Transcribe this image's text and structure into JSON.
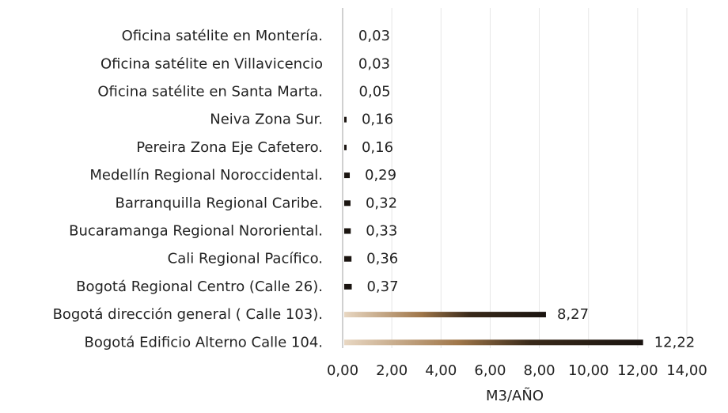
{
  "chart_data": {
    "type": "bar",
    "orientation": "horizontal",
    "categories": [
      "Oficina satélite en Montería.",
      "Oficina satélite en Villavicencio",
      "Oficina satélite en Santa Marta.",
      "Neiva Zona Sur.",
      "Pereira Zona Eje Cafetero.",
      "Medellín Regional Noroccidental.",
      "Barranquilla Regional Caribe.",
      "Bucaramanga Regional Nororiental.",
      "Cali Regional Pacífico.",
      "Bogotá Regional Centro (Calle 26).",
      "Bogotá dirección general ( Calle 103).",
      "Bogotá Edificio Alterno Calle 104."
    ],
    "values": [
      0.03,
      0.03,
      0.05,
      0.16,
      0.16,
      0.29,
      0.32,
      0.33,
      0.36,
      0.37,
      8.27,
      12.22
    ],
    "value_labels": [
      "0,03",
      "0,03",
      "0,05",
      "0,16",
      "0,16",
      "0,29",
      "0,32",
      "0,33",
      "0,36",
      "0,37",
      "8,27",
      "12,22"
    ],
    "xlim": [
      0,
      14
    ],
    "x_ticks": [
      "0,00",
      "2,00",
      "4,00",
      "6,00",
      "8,00",
      "10,00",
      "12,00",
      "14,00"
    ],
    "xlabel": "M3/AÑO",
    "ylabel": "",
    "title": "",
    "grid": "vertical",
    "legend": "none",
    "colors": {
      "bar_start": "#e8d7c2",
      "bar_mid": "#a0774a",
      "bar_dark": "#3a2a1a",
      "bar_end": "#1a1410",
      "grid": "#e6e6e6",
      "axis": "#d0d0d0",
      "text": "#222222"
    }
  }
}
